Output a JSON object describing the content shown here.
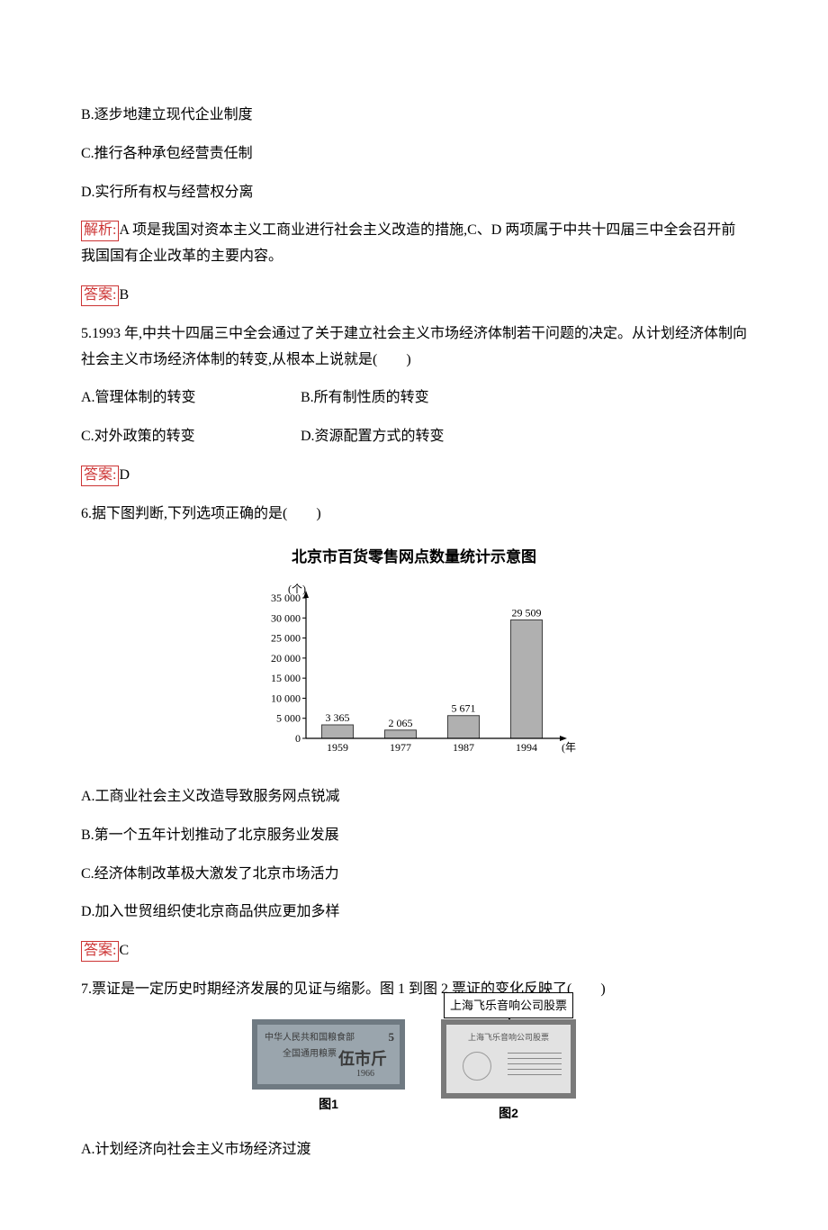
{
  "q4": {
    "opt_b": "B.逐步地建立现代企业制度",
    "opt_c": "C.推行各种承包经营责任制",
    "opt_d": "D.实行所有权与经营权分离",
    "analysis_label": "解析:",
    "analysis_text": "A 项是我国对资本主义工商业进行社会主义改造的措施,C、D 两项属于中共十四届三中全会召开前我国国有企业改革的主要内容。",
    "answer_label": "答案:",
    "answer_value": "B"
  },
  "q5": {
    "stem": "5.1993 年,中共十四届三中全会通过了关于建立社会主义市场经济体制若干问题的决定。从计划经济体制向社会主义市场经济体制的转变,从根本上说就是(　　)",
    "opt_a": "A.管理体制的转变",
    "opt_b": "B.所有制性质的转变",
    "opt_c": "C.对外政策的转变",
    "opt_d": "D.资源配置方式的转变",
    "answer_label": "答案:",
    "answer_value": "D"
  },
  "q6": {
    "stem": "6.据下图判断,下列选项正确的是(　　)",
    "chart_title": "北京市百货零售网点数量统计示意图",
    "chart": {
      "type": "bar",
      "y_unit": "(个)",
      "x_unit": "(年)",
      "categories": [
        "1959",
        "1977",
        "1987",
        "1994"
      ],
      "values": [
        3365,
        2065,
        5671,
        29509
      ],
      "value_labels": [
        "3 365",
        "2 065",
        "5 671",
        "29 509"
      ],
      "ylim": [
        0,
        35000
      ],
      "ytick_step": 5000,
      "ytick_labels": [
        "0",
        "5 000",
        "10 000",
        "15 000",
        "20 000",
        "25 000",
        "30 000",
        "35 000"
      ],
      "bar_color": "#b0b0b0",
      "bar_border": "#404040",
      "axis_color": "#000000",
      "label_font": 12,
      "bar_width": 0.5
    },
    "opt_a": "A.工商业社会主义改造导致服务网点锐减",
    "opt_b": "B.第一个五年计划推动了北京服务业发展",
    "opt_c": "C.经济体制改革极大激发了北京市场活力",
    "opt_d": "D.加入世贸组织使北京商品供应更加多样",
    "answer_label": "答案:",
    "answer_value": "C"
  },
  "q7": {
    "stem": "7.票证是一定历史时期经济发展的见证与缩影。图 1 到图 2 票证的变化反映了(　　)",
    "img1_caption": "图1",
    "img2_caption": "图2",
    "img1_text1": "中华人民共和国粮食部",
    "img1_text2": "全国通用粮票",
    "img1_big": "伍市斤",
    "img1_year": "1966",
    "img1_num": "5",
    "img2_callout": "上海飞乐音响公司股票",
    "img2_title": "上海飞乐音响公司股票",
    "opt_a": "A.计划经济向社会主义市场经济过渡"
  }
}
